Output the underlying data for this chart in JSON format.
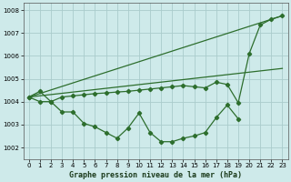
{
  "xlabel": "Graphe pression niveau de la mer (hPa)",
  "bg_color": "#ceeaea",
  "grid_color": "#aacccc",
  "line_color": "#2d6e2d",
  "xlim": [
    -0.5,
    23.5
  ],
  "ylim": [
    1001.5,
    1008.3
  ],
  "yticks": [
    1002,
    1003,
    1004,
    1005,
    1006,
    1007,
    1008
  ],
  "xticks": [
    0,
    1,
    2,
    3,
    4,
    5,
    6,
    7,
    8,
    9,
    10,
    11,
    12,
    13,
    14,
    15,
    16,
    17,
    18,
    19,
    20,
    21,
    22,
    23
  ],
  "series_curved": {
    "x": [
      0,
      1,
      2,
      3,
      4,
      5,
      6,
      7,
      8,
      9,
      10,
      11,
      12,
      13,
      14,
      15,
      16,
      17,
      18,
      19
    ],
    "y": [
      1004.2,
      1004.45,
      1004.0,
      1003.55,
      1003.55,
      1003.05,
      1002.9,
      1002.65,
      1002.4,
      1002.85,
      1003.5,
      1002.65,
      1002.25,
      1002.25,
      1002.4,
      1002.5,
      1002.65,
      1003.3,
      1003.85,
      1003.25
    ]
  },
  "series_straight_top": {
    "x": [
      0,
      23
    ],
    "y": [
      1004.2,
      1007.75
    ]
  },
  "series_straight_mid": {
    "x": [
      0,
      23
    ],
    "y": [
      1004.2,
      1005.45
    ]
  },
  "series_with_markers": {
    "x": [
      0,
      1,
      2,
      3,
      4,
      5,
      6,
      7,
      8,
      9,
      10,
      11,
      12,
      13,
      14,
      15,
      16,
      17,
      18,
      19,
      20,
      21,
      22,
      23
    ],
    "y": [
      1004.2,
      1004.0,
      1004.0,
      1004.2,
      1004.25,
      1004.3,
      1004.35,
      1004.38,
      1004.42,
      1004.45,
      1004.5,
      1004.55,
      1004.6,
      1004.65,
      1004.7,
      1004.65,
      1004.6,
      1004.85,
      1004.75,
      1003.95,
      1006.1,
      1007.35,
      1007.6,
      1007.75
    ]
  }
}
